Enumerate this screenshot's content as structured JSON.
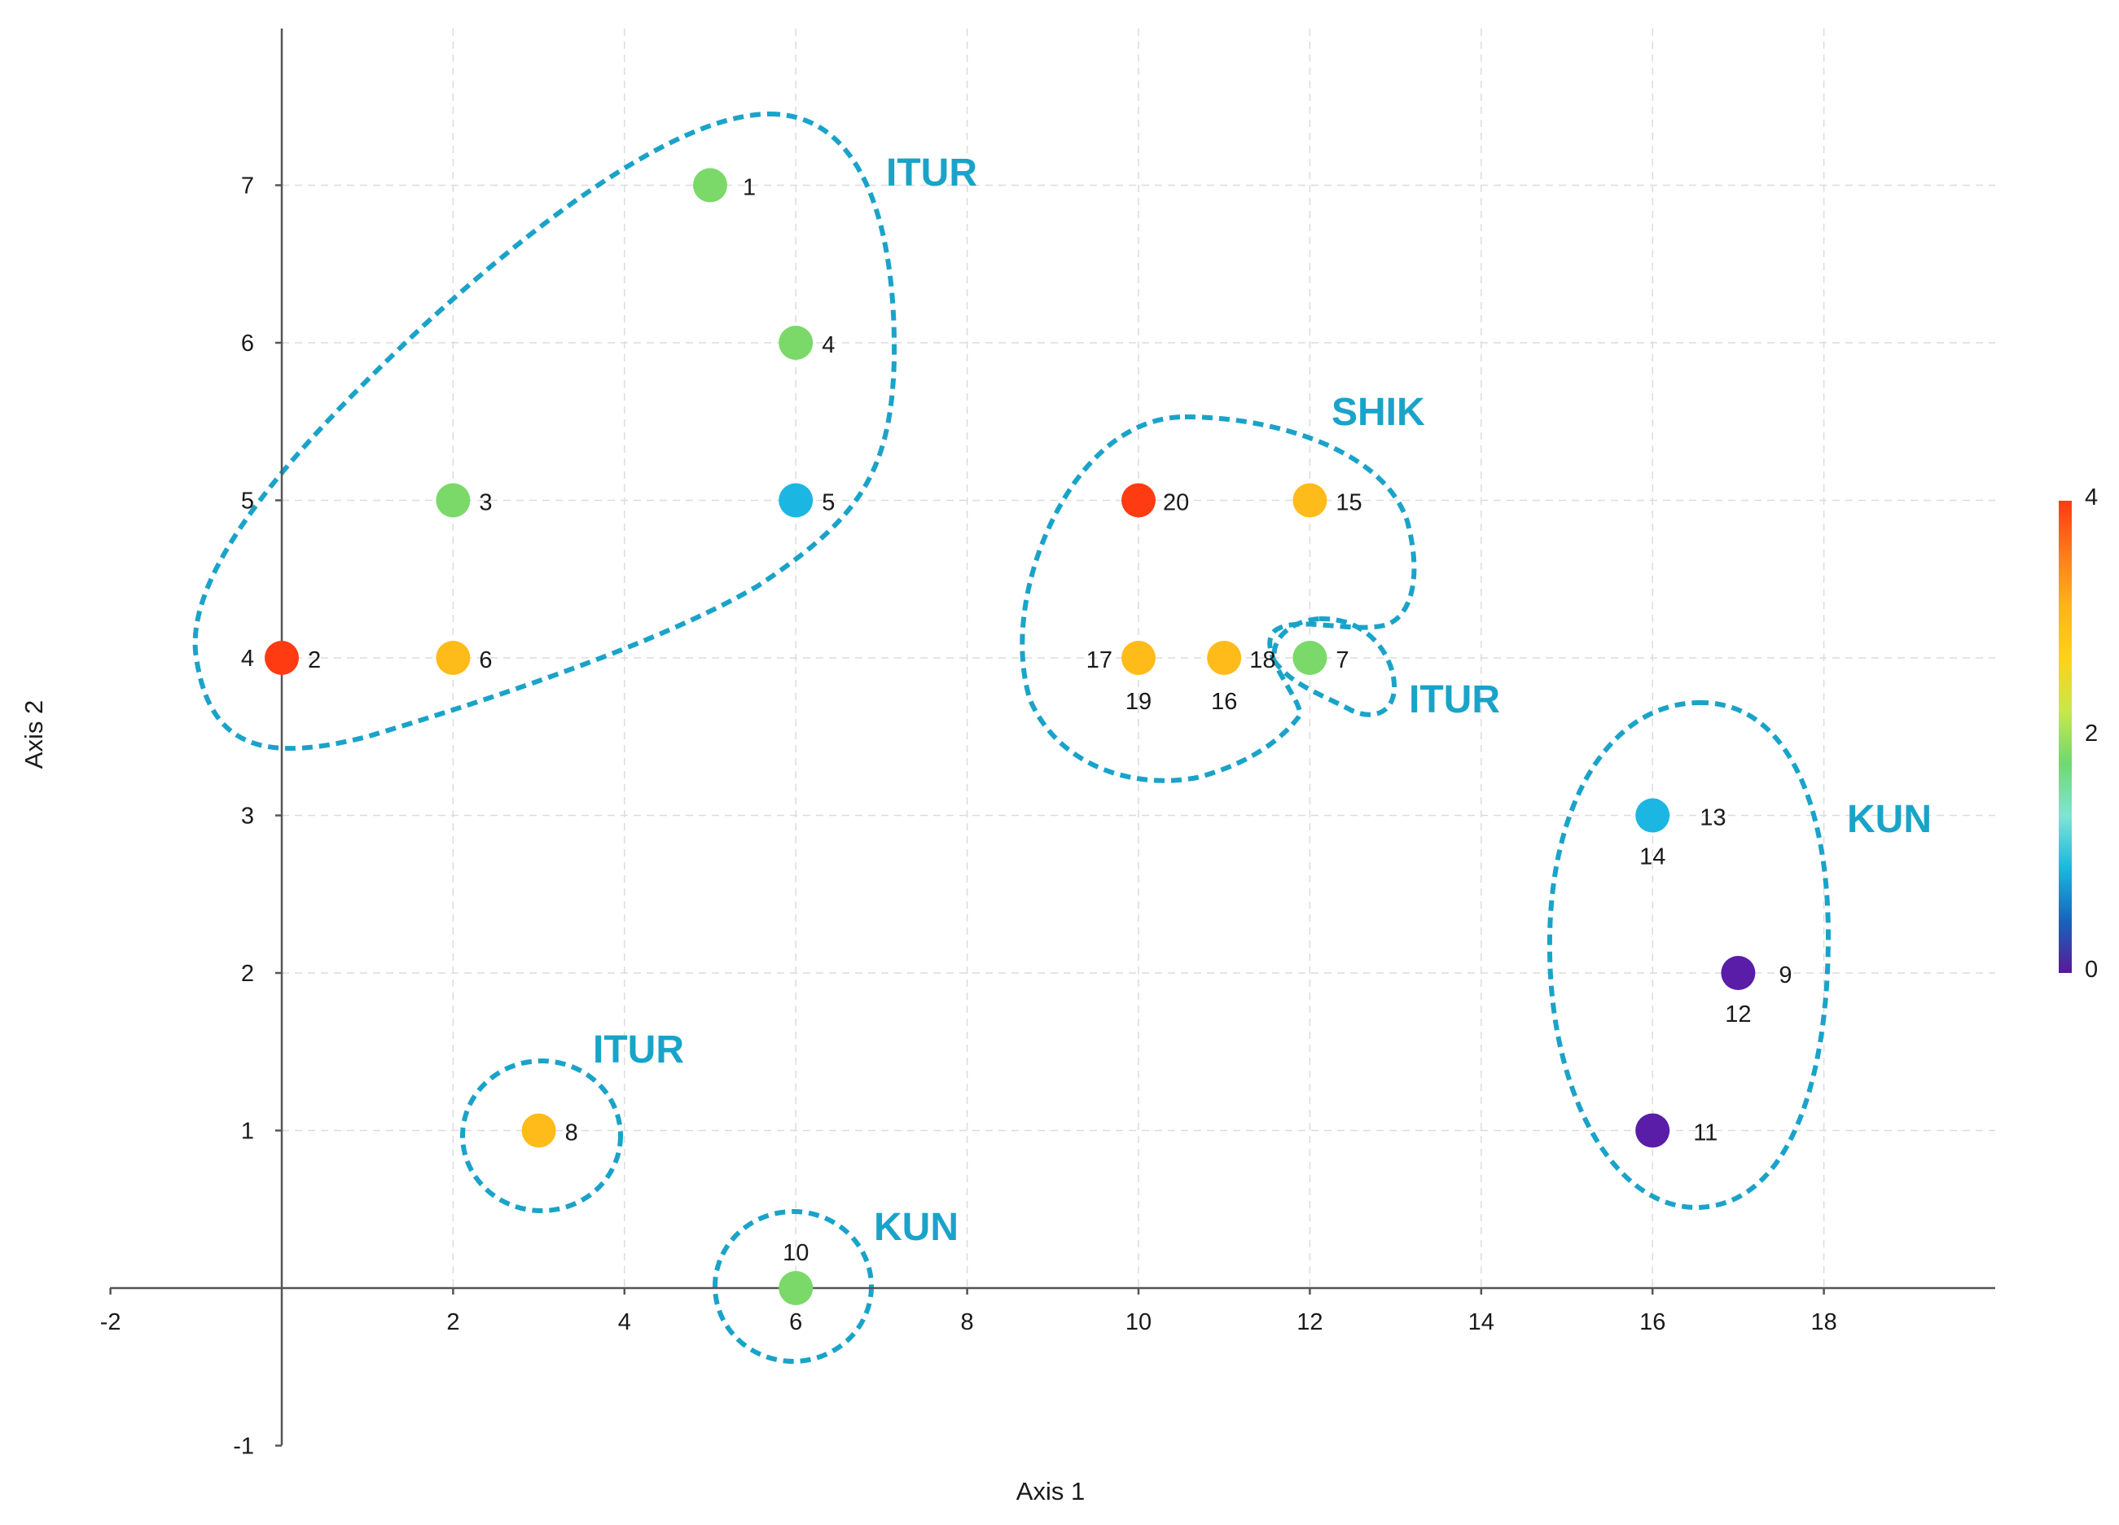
{
  "chart_data": {
    "type": "scatter",
    "xlabel": "Axis 1",
    "ylabel": "Axis 2",
    "xlim": [
      -2,
      20
    ],
    "ylim": [
      -1,
      8
    ],
    "x_ticks": [
      "-2",
      "2",
      "4",
      "6",
      "8",
      "10",
      "12",
      "14",
      "16",
      "18"
    ],
    "y_ticks": [
      "7",
      "6",
      "5",
      "4",
      "3",
      "2",
      "1",
      "-1"
    ],
    "points": [
      {
        "id": "1",
        "x": 5,
        "y": 7,
        "value": 2
      },
      {
        "id": "2",
        "x": 0,
        "y": 4,
        "value": 4
      },
      {
        "id": "3",
        "x": 2,
        "y": 5,
        "value": 2
      },
      {
        "id": "4",
        "x": 6,
        "y": 6,
        "value": 2
      },
      {
        "id": "5",
        "x": 6,
        "y": 5,
        "value": 1
      },
      {
        "id": "6",
        "x": 2,
        "y": 4,
        "value": 3
      },
      {
        "id": "7",
        "x": 12,
        "y": 4,
        "value": 2
      },
      {
        "id": "8",
        "x": 3,
        "y": 1,
        "value": 3
      },
      {
        "id": "9",
        "x": 17,
        "y": 2,
        "value": 0
      },
      {
        "id": "10",
        "x": 6,
        "y": 0,
        "value": 2
      },
      {
        "id": "11",
        "x": 16,
        "y": 1,
        "value": 0
      },
      {
        "id": "12",
        "x": 17,
        "y": 2,
        "value": 0
      },
      {
        "id": "13",
        "x": 16,
        "y": 3,
        "value": 1
      },
      {
        "id": "14",
        "x": 16,
        "y": 3,
        "value": 1
      },
      {
        "id": "15",
        "x": 12,
        "y": 5,
        "value": 3
      },
      {
        "id": "16",
        "x": 11,
        "y": 4,
        "value": 3
      },
      {
        "id": "17",
        "x": 10,
        "y": 4,
        "value": 3
      },
      {
        "id": "18",
        "x": 11,
        "y": 4,
        "value": 3
      },
      {
        "id": "19",
        "x": 10,
        "y": 4,
        "value": 3
      },
      {
        "id": "20",
        "x": 10,
        "y": 5,
        "value": 4
      }
    ],
    "clusters": [
      {
        "label": "ITUR",
        "members": [
          "1",
          "2",
          "3",
          "4",
          "5",
          "6"
        ]
      },
      {
        "label": "SHIK",
        "members": [
          "15",
          "16",
          "17",
          "18",
          "19",
          "20"
        ]
      },
      {
        "label": "ITUR",
        "members": [
          "7"
        ]
      },
      {
        "label": "KUN",
        "members": [
          "9",
          "11",
          "12",
          "13",
          "14"
        ]
      },
      {
        "label": "ITUR",
        "members": [
          "8"
        ]
      },
      {
        "label": "KUN",
        "members": [
          "10"
        ]
      }
    ],
    "colorbar": {
      "min": 0,
      "max": 4,
      "tick_labels": [
        "4",
        "2",
        "0"
      ],
      "colors": [
        "#5a189a",
        "#1565c0",
        "#1ab8e0",
        "#7ee5d4",
        "#6fd96f",
        "#c8e84a",
        "#ffd11a",
        "#ffb31a",
        "#ff7a1a",
        "#ff3b10"
      ]
    },
    "cluster_outline_color": "#1aa3c9",
    "cluster_label_color": "#1aa3c9"
  }
}
